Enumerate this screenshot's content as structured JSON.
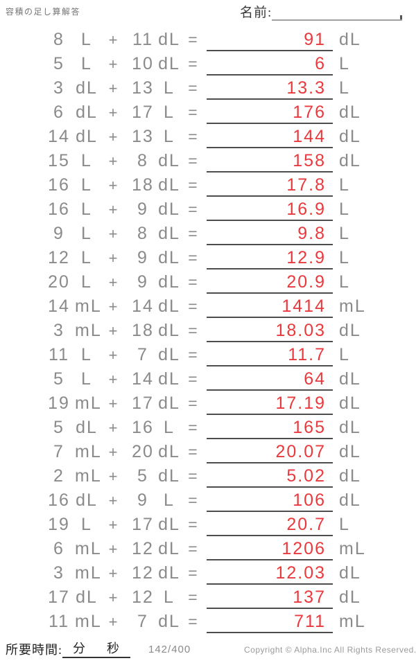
{
  "header": {
    "title": "容積の足し算解答",
    "name_label": "名前:"
  },
  "symbols": {
    "plus": "+",
    "equals": "="
  },
  "problems": [
    {
      "a": "8",
      "unit_a": "L",
      "b": "11",
      "unit_b": "dL",
      "answer": "91",
      "answer_unit": "dL"
    },
    {
      "a": "5",
      "unit_a": "L",
      "b": "10",
      "unit_b": "dL",
      "answer": "6",
      "answer_unit": "L"
    },
    {
      "a": "3",
      "unit_a": "dL",
      "b": "13",
      "unit_b": "L",
      "answer": "13.3",
      "answer_unit": "L"
    },
    {
      "a": "6",
      "unit_a": "dL",
      "b": "17",
      "unit_b": "L",
      "answer": "176",
      "answer_unit": "dL"
    },
    {
      "a": "14",
      "unit_a": "dL",
      "b": "13",
      "unit_b": "L",
      "answer": "144",
      "answer_unit": "dL"
    },
    {
      "a": "15",
      "unit_a": "L",
      "b": "8",
      "unit_b": "dL",
      "answer": "158",
      "answer_unit": "dL"
    },
    {
      "a": "16",
      "unit_a": "L",
      "b": "18",
      "unit_b": "dL",
      "answer": "17.8",
      "answer_unit": "L"
    },
    {
      "a": "16",
      "unit_a": "L",
      "b": "9",
      "unit_b": "dL",
      "answer": "16.9",
      "answer_unit": "L"
    },
    {
      "a": "9",
      "unit_a": "L",
      "b": "8",
      "unit_b": "dL",
      "answer": "9.8",
      "answer_unit": "L"
    },
    {
      "a": "12",
      "unit_a": "L",
      "b": "9",
      "unit_b": "dL",
      "answer": "12.9",
      "answer_unit": "L"
    },
    {
      "a": "20",
      "unit_a": "L",
      "b": "9",
      "unit_b": "dL",
      "answer": "20.9",
      "answer_unit": "L"
    },
    {
      "a": "14",
      "unit_a": "mL",
      "b": "14",
      "unit_b": "dL",
      "answer": "1414",
      "answer_unit": "mL"
    },
    {
      "a": "3",
      "unit_a": "mL",
      "b": "18",
      "unit_b": "dL",
      "answer": "18.03",
      "answer_unit": "dL"
    },
    {
      "a": "11",
      "unit_a": "L",
      "b": "7",
      "unit_b": "dL",
      "answer": "11.7",
      "answer_unit": "L"
    },
    {
      "a": "5",
      "unit_a": "L",
      "b": "14",
      "unit_b": "dL",
      "answer": "64",
      "answer_unit": "dL"
    },
    {
      "a": "19",
      "unit_a": "mL",
      "b": "17",
      "unit_b": "dL",
      "answer": "17.19",
      "answer_unit": "dL"
    },
    {
      "a": "5",
      "unit_a": "dL",
      "b": "16",
      "unit_b": "L",
      "answer": "165",
      "answer_unit": "dL"
    },
    {
      "a": "7",
      "unit_a": "mL",
      "b": "20",
      "unit_b": "dL",
      "answer": "20.07",
      "answer_unit": "dL"
    },
    {
      "a": "2",
      "unit_a": "mL",
      "b": "5",
      "unit_b": "dL",
      "answer": "5.02",
      "answer_unit": "dL"
    },
    {
      "a": "16",
      "unit_a": "dL",
      "b": "9",
      "unit_b": "L",
      "answer": "106",
      "answer_unit": "dL"
    },
    {
      "a": "19",
      "unit_a": "L",
      "b": "17",
      "unit_b": "dL",
      "answer": "20.7",
      "answer_unit": "L"
    },
    {
      "a": "6",
      "unit_a": "mL",
      "b": "12",
      "unit_b": "dL",
      "answer": "1206",
      "answer_unit": "mL"
    },
    {
      "a": "3",
      "unit_a": "mL",
      "b": "12",
      "unit_b": "dL",
      "answer": "12.03",
      "answer_unit": "dL"
    },
    {
      "a": "17",
      "unit_a": "dL",
      "b": "12",
      "unit_b": "L",
      "answer": "137",
      "answer_unit": "dL"
    },
    {
      "a": "11",
      "unit_a": "mL",
      "b": "7",
      "unit_b": "dL",
      "answer": "711",
      "answer_unit": "mL"
    }
  ],
  "footer": {
    "time_label": "所要時間:",
    "minutes_label": "分",
    "seconds_label": "秒",
    "page": "142/400",
    "copyright": "Copyright © Alpha.Inc All Rights Reserved."
  },
  "colors": {
    "problem_text": "#8a8a8a",
    "answer_text": "#e8393f",
    "answer_line": "#4d4d4d"
  }
}
